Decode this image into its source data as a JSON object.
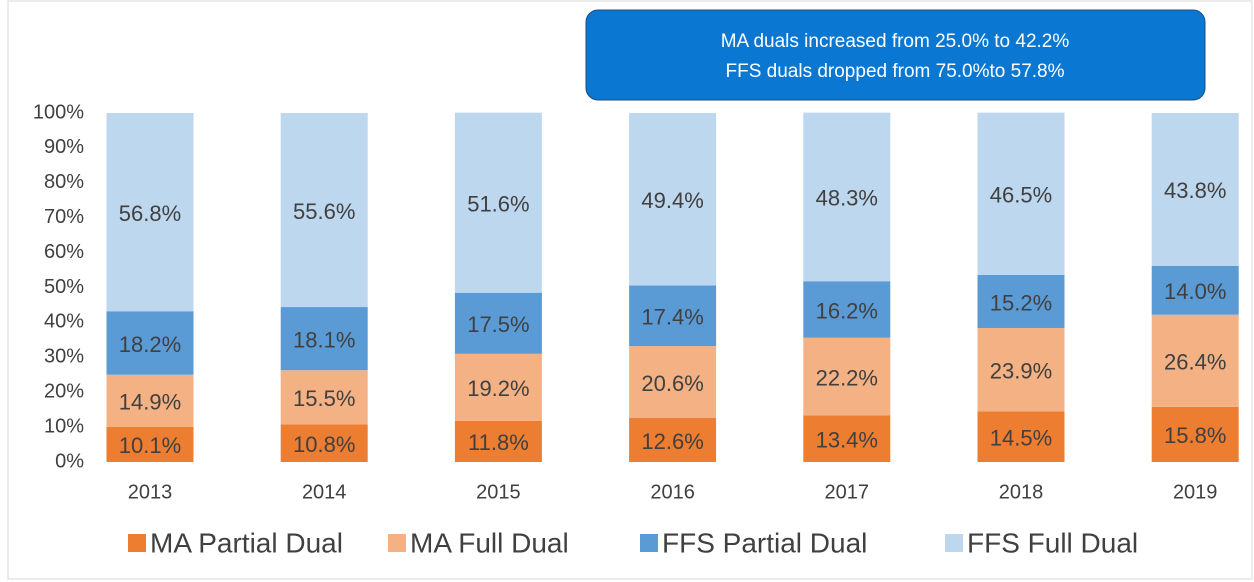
{
  "chart_data": {
    "type": "stacked_bar",
    "annotation": [
      "MA duals increased from 25.0% to 42.2%",
      "FFS duals dropped from 75.0%to 57.8%"
    ],
    "categories": [
      "2013",
      "2014",
      "2015",
      "2016",
      "2017",
      "2018",
      "2019"
    ],
    "series": [
      {
        "name": "MA Partial Dual",
        "color": "#ed7d31",
        "values": [
          10.1,
          10.8,
          11.8,
          12.6,
          13.4,
          14.5,
          15.8
        ],
        "value_labels": [
          "10.1%",
          "10.8%",
          "11.8%",
          "12.6%",
          "13.4%",
          "14.5%",
          "15.8%"
        ]
      },
      {
        "name": "MA Full Dual",
        "color": "#f4b183",
        "values": [
          14.9,
          15.5,
          19.2,
          20.6,
          22.2,
          23.9,
          26.4
        ],
        "value_labels": [
          "14.9%",
          "15.5%",
          "19.2%",
          "20.6%",
          "22.2%",
          "23.9%",
          "26.4%"
        ]
      },
      {
        "name": "FFS Partial Dual",
        "color": "#5b9bd5",
        "values": [
          18.2,
          18.1,
          17.5,
          17.4,
          16.2,
          15.2,
          14.0
        ],
        "value_labels": [
          "18.2%",
          "18.1%",
          "17.5%",
          "17.4%",
          "16.2%",
          "15.2%",
          "14.0%"
        ]
      },
      {
        "name": "FFS Full Dual",
        "color": "#bdd7ee",
        "values": [
          56.8,
          55.6,
          51.6,
          49.4,
          48.3,
          46.5,
          43.8
        ],
        "value_labels": [
          "56.8%",
          "55.6%",
          "51.6%",
          "49.4%",
          "48.3%",
          "46.5%",
          "43.8%"
        ]
      }
    ],
    "ylim": [
      0,
      100
    ],
    "yticks": [
      {
        "value": 0,
        "label": "0%"
      },
      {
        "value": 10,
        "label": "10%"
      },
      {
        "value": 20,
        "label": "20%"
      },
      {
        "value": 30,
        "label": "30%"
      },
      {
        "value": 40,
        "label": "40%"
      },
      {
        "value": 50,
        "label": "50%"
      },
      {
        "value": 60,
        "label": "60%"
      },
      {
        "value": 70,
        "label": "70%"
      },
      {
        "value": 80,
        "label": "80%"
      },
      {
        "value": 90,
        "label": "90%"
      },
      {
        "value": 100,
        "label": "100%"
      }
    ],
    "legend": "bottom"
  }
}
